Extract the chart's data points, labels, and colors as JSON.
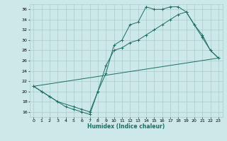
{
  "bg_color": "#cce8e8",
  "grid_color": "#aacccc",
  "line_color": "#1a6e5e",
  "xlabel": "Humidex (Indice chaleur)",
  "xlim": [
    -0.5,
    23.5
  ],
  "ylim": [
    15,
    37
  ],
  "xticks": [
    0,
    1,
    2,
    3,
    4,
    5,
    6,
    7,
    8,
    9,
    10,
    11,
    12,
    13,
    14,
    15,
    16,
    17,
    18,
    19,
    20,
    21,
    22,
    23
  ],
  "yticks": [
    16,
    18,
    20,
    22,
    24,
    26,
    28,
    30,
    32,
    34,
    36
  ],
  "line1_x": [
    0,
    1,
    2,
    3,
    4,
    5,
    6,
    7,
    8,
    9,
    10,
    11,
    12,
    13,
    14,
    15,
    16,
    17,
    18,
    19,
    20,
    21,
    22,
    23
  ],
  "line1_y": [
    21,
    20,
    19,
    18,
    17,
    16.5,
    16,
    15.5,
    20,
    23.5,
    29,
    30,
    33,
    33.5,
    36.5,
    36,
    36,
    36.5,
    36.5,
    35.5,
    33,
    31,
    28,
    26.5
  ],
  "line2_x": [
    0,
    1,
    2,
    3,
    5,
    6,
    7,
    8,
    9,
    10,
    11,
    12,
    13,
    14,
    15,
    16,
    17,
    18,
    19,
    20,
    21,
    22,
    23
  ],
  "line2_y": [
    21,
    20,
    19,
    18,
    17,
    16.5,
    16,
    20,
    25,
    28,
    28.5,
    29.5,
    30,
    31,
    32,
    33,
    34,
    35,
    35.5,
    33,
    30.5,
    28,
    26.5
  ],
  "line3_x": [
    0,
    23
  ],
  "line3_y": [
    21,
    26.5
  ]
}
